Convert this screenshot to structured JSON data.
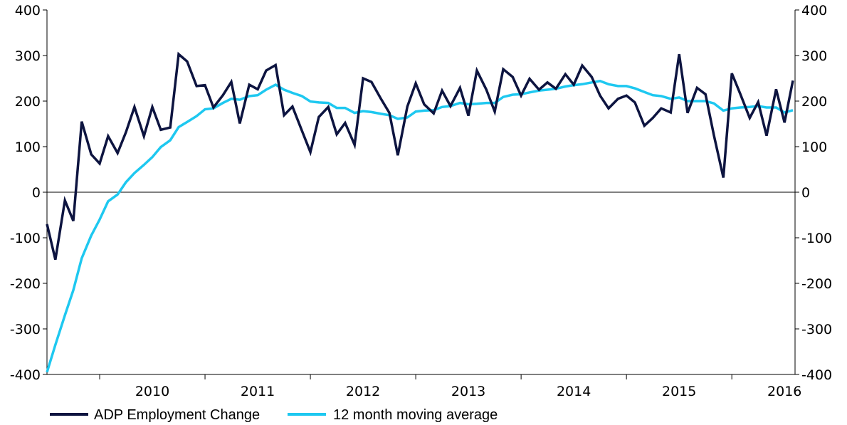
{
  "chart_data": {
    "type": "line",
    "title": "",
    "xlabel": "",
    "ylabel": "",
    "ylim": [
      -400,
      400
    ],
    "yticks": [
      400,
      300,
      200,
      100,
      0,
      -100,
      -200,
      -300,
      -400
    ],
    "ytick_labels": [
      "400",
      "300",
      "200",
      "100",
      "0",
      "-100",
      "-200",
      "-300",
      "-400"
    ],
    "xlim": [
      2009.5,
      2016.6
    ],
    "year_labels": [
      "2010",
      "2011",
      "2012",
      "2013",
      "2014",
      "2015",
      "2016"
    ],
    "grid": false,
    "zero_line": true,
    "dual_axis": true,
    "legend_position": "bottom-left",
    "series": [
      {
        "name": "ADP Employment Change",
        "color": "#0d1440",
        "x": [
          2009.5,
          2009.58,
          2009.67,
          2009.75,
          2009.83,
          2009.92,
          2010.0,
          2010.08,
          2010.17,
          2010.25,
          2010.33,
          2010.42,
          2010.5,
          2010.58,
          2010.67,
          2010.75,
          2010.83,
          2010.92,
          2011.0,
          2011.08,
          2011.17,
          2011.25,
          2011.33,
          2011.42,
          2011.5,
          2011.58,
          2011.67,
          2011.75,
          2011.83,
          2011.92,
          2012.0,
          2012.08,
          2012.17,
          2012.25,
          2012.33,
          2012.42,
          2012.5,
          2012.58,
          2012.67,
          2012.75,
          2012.83,
          2012.92,
          2013.0,
          2013.08,
          2013.17,
          2013.25,
          2013.33,
          2013.42,
          2013.5,
          2013.58,
          2013.67,
          2013.75,
          2013.83,
          2013.92,
          2014.0,
          2014.08,
          2014.17,
          2014.25,
          2014.33,
          2014.42,
          2014.5,
          2014.58,
          2014.67,
          2014.75,
          2014.83,
          2014.92,
          2015.0,
          2015.08,
          2015.17,
          2015.25,
          2015.33,
          2015.42,
          2015.5,
          2015.58,
          2015.67,
          2015.75,
          2015.83,
          2015.92,
          2016.0,
          2016.08,
          2016.17,
          2016.25,
          2016.33,
          2016.42,
          2016.5,
          2016.58
        ],
        "values": [
          -70,
          -148,
          -18,
          -63,
          155,
          83,
          63,
          123,
          86,
          132,
          187,
          123,
          187,
          137,
          142,
          303,
          287,
          233,
          235,
          186,
          213,
          242,
          151,
          236,
          226,
          267,
          279,
          169,
          188,
          135,
          88,
          165,
          187,
          127,
          152,
          104,
          250,
          242,
          205,
          174,
          81,
          188,
          239,
          193,
          173,
          223,
          189,
          229,
          168,
          267,
          225,
          177,
          270,
          253,
          212,
          249,
          225,
          241,
          227,
          259,
          236,
          278,
          253,
          212,
          184,
          205,
          212,
          197,
          146,
          163,
          184,
          175,
          303,
          174,
          229,
          215,
          125,
          32,
          261,
          216,
          163,
          198,
          124,
          226,
          153,
          245
        ]
      },
      {
        "name": "12 month moving average",
        "color": "#1ec8f0",
        "x": [
          2009.5,
          2009.58,
          2009.67,
          2009.75,
          2009.83,
          2009.92,
          2010.0,
          2010.08,
          2010.17,
          2010.25,
          2010.33,
          2010.42,
          2010.5,
          2010.58,
          2010.67,
          2010.75,
          2010.83,
          2010.92,
          2011.0,
          2011.08,
          2011.17,
          2011.25,
          2011.33,
          2011.42,
          2011.5,
          2011.58,
          2011.67,
          2011.75,
          2011.83,
          2011.92,
          2012.0,
          2012.08,
          2012.17,
          2012.25,
          2012.33,
          2012.42,
          2012.5,
          2012.58,
          2012.67,
          2012.75,
          2012.83,
          2012.92,
          2013.0,
          2013.08,
          2013.17,
          2013.25,
          2013.33,
          2013.42,
          2013.5,
          2013.58,
          2013.67,
          2013.75,
          2013.83,
          2013.92,
          2014.0,
          2014.08,
          2014.17,
          2014.25,
          2014.33,
          2014.42,
          2014.5,
          2014.58,
          2014.67,
          2014.75,
          2014.83,
          2014.92,
          2015.0,
          2015.08,
          2015.17,
          2015.25,
          2015.33,
          2015.42,
          2015.5,
          2015.58,
          2015.67,
          2015.75,
          2015.83,
          2015.92,
          2016.0,
          2016.08,
          2016.17,
          2016.25,
          2016.33,
          2016.42,
          2016.5,
          2016.58
        ],
        "values": [
          -395,
          -335,
          -270,
          -215,
          -145,
          -95,
          -60,
          -20,
          -5,
          22,
          42,
          60,
          77,
          99,
          114,
          143,
          154,
          167,
          182,
          184,
          196,
          205,
          203,
          211,
          213,
          225,
          236,
          225,
          218,
          211,
          199,
          197,
          196,
          185,
          185,
          174,
          178,
          176,
          172,
          169,
          161,
          164,
          177,
          179,
          180,
          187,
          189,
          196,
          193,
          194,
          196,
          196,
          209,
          214,
          215,
          219,
          223,
          225,
          227,
          232,
          235,
          237,
          241,
          244,
          237,
          233,
          233,
          228,
          220,
          213,
          211,
          205,
          208,
          200,
          200,
          200,
          195,
          179,
          184,
          186,
          187,
          189,
          186,
          186,
          175,
          180
        ]
      }
    ]
  }
}
